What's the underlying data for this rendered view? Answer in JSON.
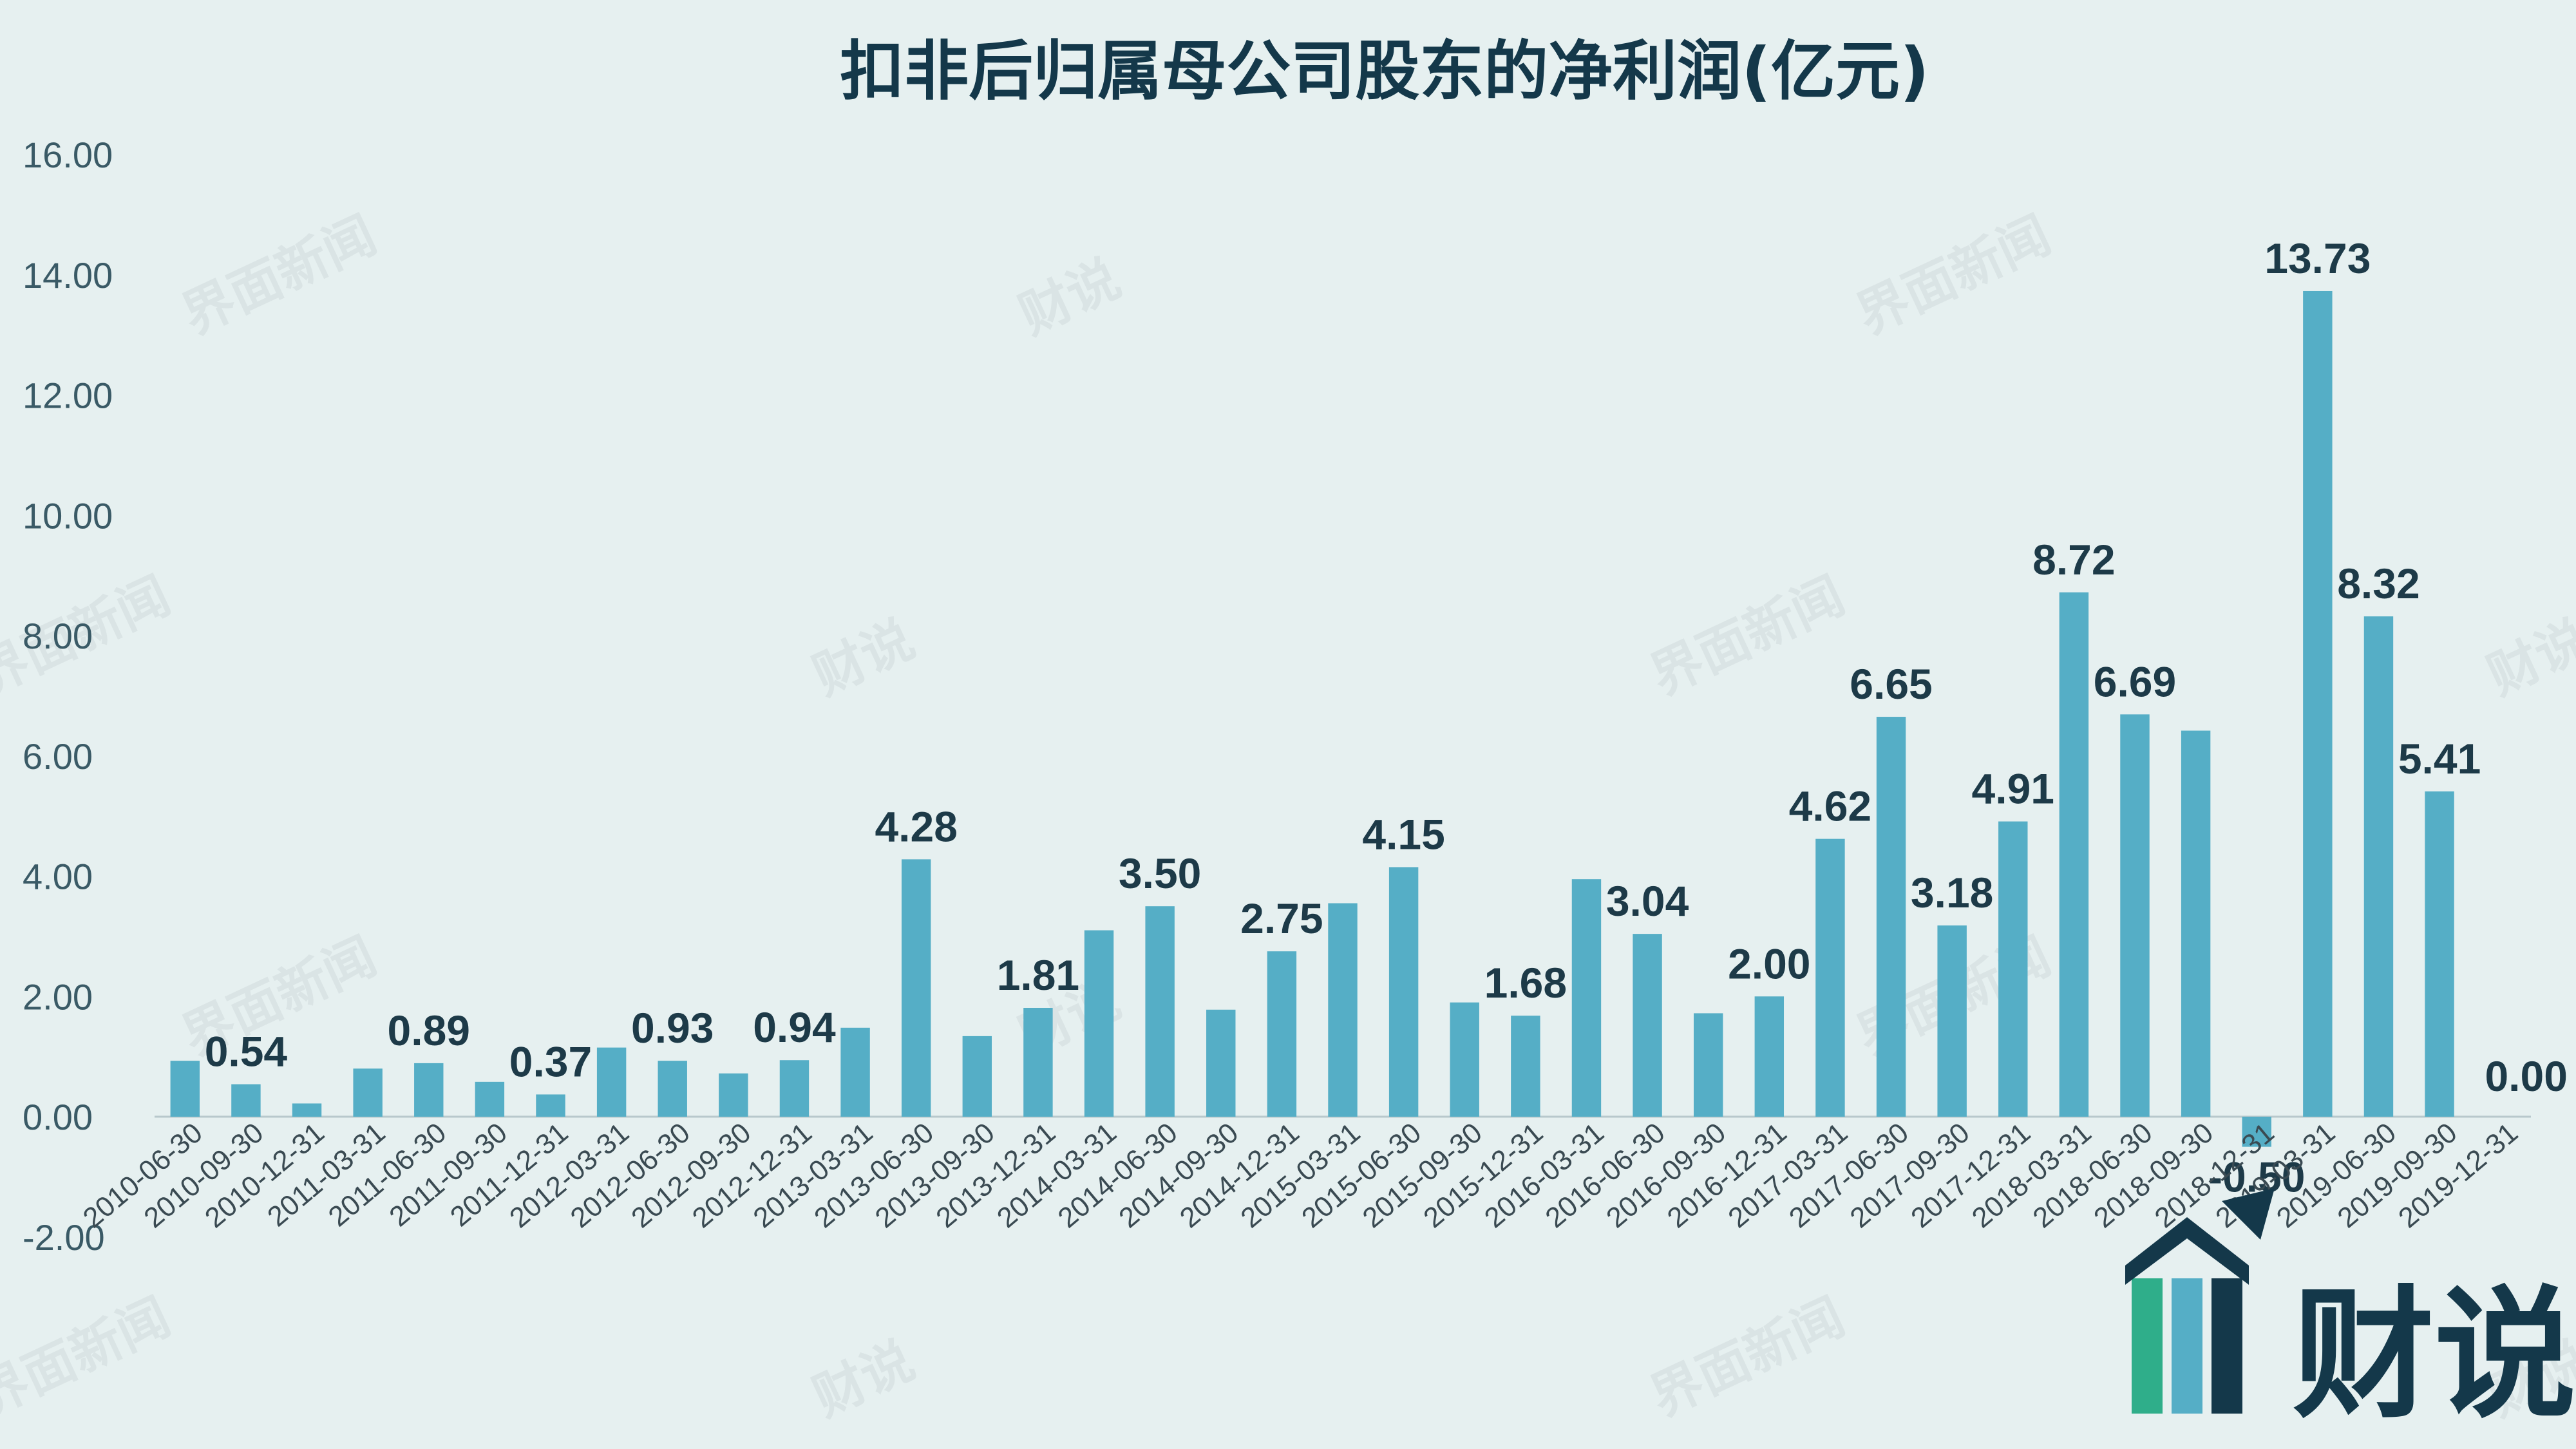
{
  "chart_data": {
    "type": "bar",
    "title": "扣非后归属母公司股东的净利润(亿元)",
    "ylim": [
      -2,
      16
    ],
    "yticks": [
      "-2.00",
      "0.00",
      "2.00",
      "4.00",
      "6.00",
      "8.00",
      "10.00",
      "12.00",
      "14.00",
      "16.00"
    ],
    "grid": false,
    "categories": [
      "2010-06-30",
      "2010-09-30",
      "2010-12-31",
      "2011-03-31",
      "2011-06-30",
      "2011-09-30",
      "2011-12-31",
      "2012-03-31",
      "2012-06-30",
      "2012-09-30",
      "2012-12-31",
      "2013-03-31",
      "2013-06-30",
      "2013-09-30",
      "2013-12-31",
      "2014-03-31",
      "2014-06-30",
      "2014-09-30",
      "2014-12-31",
      "2015-03-31",
      "2015-06-30",
      "2015-09-30",
      "2015-12-31",
      "2016-03-31",
      "2016-06-30",
      "2016-09-30",
      "2016-12-31",
      "2017-03-31",
      "2017-06-30",
      "2017-09-30",
      "2017-12-31",
      "2018-03-31",
      "2018-06-30",
      "2018-09-30",
      "2018-12-31",
      "2019-03-31",
      "2019-06-30",
      "2019-09-30",
      "2019-12-31"
    ],
    "values": [
      0.93,
      0.54,
      0.22,
      0.8,
      0.89,
      0.58,
      0.37,
      1.15,
      0.93,
      0.72,
      0.94,
      1.48,
      4.28,
      1.34,
      1.81,
      3.1,
      3.5,
      1.78,
      2.75,
      3.55,
      4.15,
      1.9,
      1.68,
      3.95,
      3.04,
      1.72,
      2.0,
      4.62,
      6.65,
      3.18,
      4.91,
      8.72,
      6.69,
      6.42,
      -0.5,
      13.73,
      8.32,
      5.41,
      0.0
    ],
    "labels": [
      "",
      "0.54",
      "",
      "",
      "0.89",
      "",
      "0.37",
      "",
      "0.93",
      "",
      "0.94",
      "",
      "4.28",
      "",
      "1.81",
      "",
      "3.50",
      "",
      "2.75",
      "",
      "4.15",
      "",
      "1.68",
      "",
      "3.04",
      "",
      "2.00",
      "4.62",
      "6.65",
      "3.18",
      "4.91",
      "8.72",
      "6.69",
      "",
      "-0.50",
      "13.73",
      "8.32",
      "5.41",
      "0.00"
    ]
  },
  "watermark": {
    "brand": "界面新闻",
    "logo": "财说"
  },
  "colors": {
    "bar": "#55aec6",
    "title": "#14384a",
    "background": "#e6f0f0"
  }
}
